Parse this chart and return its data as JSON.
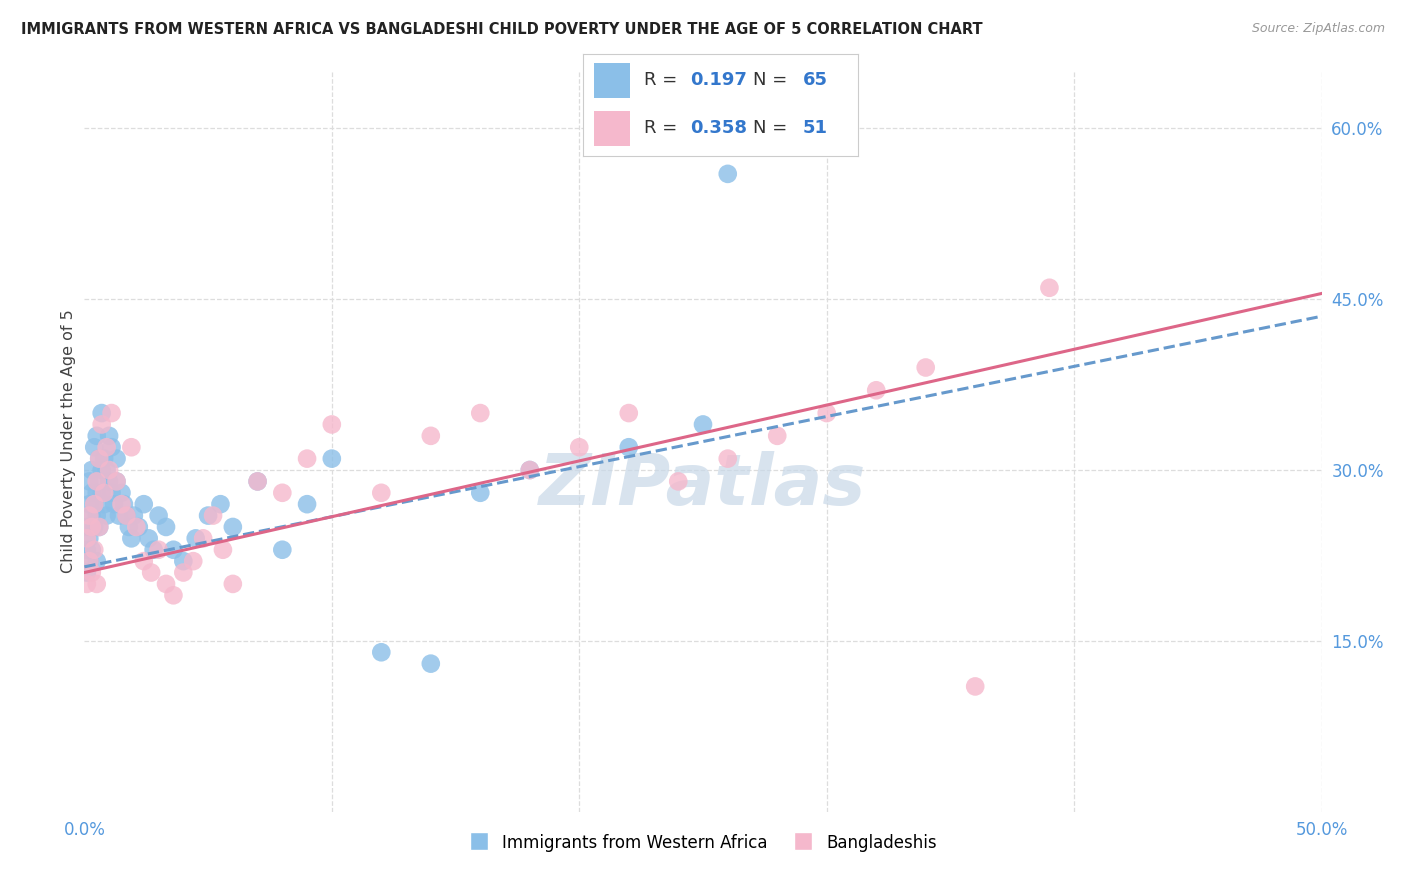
{
  "title": "IMMIGRANTS FROM WESTERN AFRICA VS BANGLADESHI CHILD POVERTY UNDER THE AGE OF 5 CORRELATION CHART",
  "source": "Source: ZipAtlas.com",
  "ylabel": "Child Poverty Under the Age of 5",
  "xlim": [
    0.0,
    0.5
  ],
  "ylim": [
    0.0,
    0.65
  ],
  "xtick_positions": [
    0.0,
    0.1,
    0.2,
    0.3,
    0.4,
    0.5
  ],
  "xtick_labels": [
    "0.0%",
    "",
    "",
    "",
    "",
    "50.0%"
  ],
  "ytick_positions": [
    0.15,
    0.3,
    0.45,
    0.6
  ],
  "ytick_labels": [
    "15.0%",
    "30.0%",
    "45.0%",
    "60.0%"
  ],
  "grid_color": "#dddddd",
  "bg_color": "#ffffff",
  "blue_dot_color": "#8bbfe8",
  "pink_dot_color": "#f5b8cc",
  "blue_line_color": "#6699cc",
  "pink_line_color": "#dd6688",
  "blue_line_style": "--",
  "pink_line_style": "-",
  "watermark": "ZIPatlas",
  "watermark_color": "#c8d8e8",
  "legend_R1": "0.197",
  "legend_N1": "65",
  "legend_R2": "0.358",
  "legend_N2": "51",
  "legend_label1": "Immigrants from Western Africa",
  "legend_label2": "Bangladeshis",
  "blue_x": [
    0.001,
    0.001,
    0.001,
    0.002,
    0.002,
    0.002,
    0.002,
    0.003,
    0.003,
    0.003,
    0.003,
    0.004,
    0.004,
    0.004,
    0.005,
    0.005,
    0.005,
    0.005,
    0.006,
    0.006,
    0.006,
    0.007,
    0.007,
    0.007,
    0.008,
    0.008,
    0.009,
    0.009,
    0.01,
    0.01,
    0.011,
    0.011,
    0.012,
    0.013,
    0.013,
    0.014,
    0.015,
    0.016,
    0.017,
    0.018,
    0.019,
    0.02,
    0.022,
    0.024,
    0.026,
    0.028,
    0.03,
    0.033,
    0.036,
    0.04,
    0.045,
    0.05,
    0.055,
    0.06,
    0.07,
    0.08,
    0.09,
    0.1,
    0.12,
    0.14,
    0.16,
    0.18,
    0.22,
    0.25,
    0.26
  ],
  "blue_y": [
    0.21,
    0.23,
    0.25,
    0.22,
    0.24,
    0.27,
    0.29,
    0.23,
    0.26,
    0.28,
    0.3,
    0.25,
    0.27,
    0.32,
    0.22,
    0.26,
    0.28,
    0.33,
    0.25,
    0.29,
    0.31,
    0.28,
    0.3,
    0.35,
    0.27,
    0.31,
    0.26,
    0.3,
    0.29,
    0.33,
    0.28,
    0.32,
    0.27,
    0.29,
    0.31,
    0.26,
    0.28,
    0.27,
    0.26,
    0.25,
    0.24,
    0.26,
    0.25,
    0.27,
    0.24,
    0.23,
    0.26,
    0.25,
    0.23,
    0.22,
    0.24,
    0.26,
    0.27,
    0.25,
    0.29,
    0.23,
    0.27,
    0.31,
    0.14,
    0.13,
    0.28,
    0.3,
    0.32,
    0.34,
    0.56
  ],
  "pink_x": [
    0.001,
    0.001,
    0.002,
    0.002,
    0.003,
    0.003,
    0.004,
    0.004,
    0.005,
    0.005,
    0.006,
    0.006,
    0.007,
    0.008,
    0.009,
    0.01,
    0.011,
    0.013,
    0.015,
    0.017,
    0.019,
    0.021,
    0.024,
    0.027,
    0.03,
    0.033,
    0.036,
    0.04,
    0.044,
    0.048,
    0.052,
    0.056,
    0.06,
    0.07,
    0.08,
    0.09,
    0.1,
    0.12,
    0.14,
    0.16,
    0.18,
    0.2,
    0.22,
    0.24,
    0.26,
    0.28,
    0.3,
    0.32,
    0.34,
    0.36,
    0.39
  ],
  "pink_y": [
    0.2,
    0.24,
    0.22,
    0.26,
    0.21,
    0.25,
    0.23,
    0.27,
    0.2,
    0.29,
    0.25,
    0.31,
    0.34,
    0.28,
    0.32,
    0.3,
    0.35,
    0.29,
    0.27,
    0.26,
    0.32,
    0.25,
    0.22,
    0.21,
    0.23,
    0.2,
    0.19,
    0.21,
    0.22,
    0.24,
    0.26,
    0.23,
    0.2,
    0.29,
    0.28,
    0.31,
    0.34,
    0.28,
    0.33,
    0.35,
    0.3,
    0.32,
    0.35,
    0.29,
    0.31,
    0.33,
    0.35,
    0.37,
    0.39,
    0.11,
    0.46
  ],
  "blue_line_x0": 0.0,
  "blue_line_x1": 0.5,
  "blue_line_y0": 0.215,
  "blue_line_y1": 0.435,
  "pink_line_x0": 0.0,
  "pink_line_x1": 0.5,
  "pink_line_y0": 0.21,
  "pink_line_y1": 0.455
}
